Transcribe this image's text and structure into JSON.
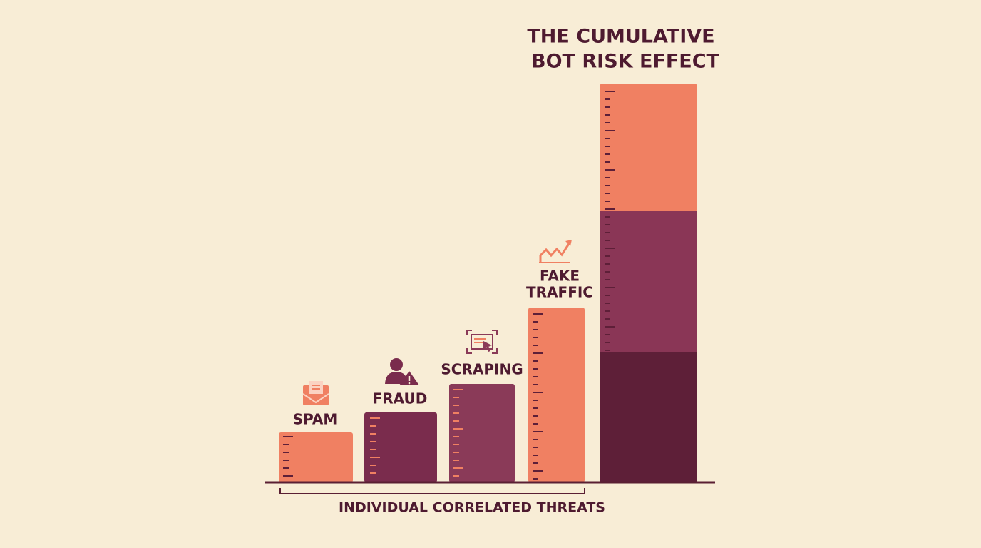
{
  "title": {
    "lines": [
      "THE CUMULATIVE",
      "BOT RISK EFFECT"
    ]
  },
  "threats": [
    {
      "label": "SPAM"
    },
    {
      "label": "FRAUD"
    },
    {
      "label": "SCRAPING"
    },
    {
      "label_lines": [
        "FAKE",
        "TRAFFIC"
      ]
    }
  ],
  "bracket_label": "INDIVIDUAL CORRELATED THREATS"
}
